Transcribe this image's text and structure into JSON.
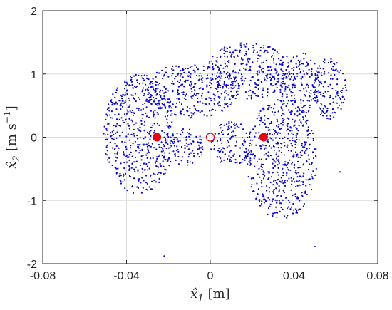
{
  "chart_data": {
    "type": "scatter",
    "xlabel": {
      "var": "x̂",
      "sub": "1",
      "unit": "[m]"
    },
    "ylabel": {
      "var": "x̂",
      "sub": "2",
      "unit": "[m s",
      "exp": "−1",
      "unit_end": "]"
    },
    "xlim": [
      -0.08,
      0.08
    ],
    "ylim": [
      -2,
      2
    ],
    "xticks": [
      {
        "value": -0.08,
        "label": "-0.08"
      },
      {
        "value": -0.04,
        "label": "-0.04"
      },
      {
        "value": 0,
        "label": "0"
      },
      {
        "value": 0.04,
        "label": "0.04"
      },
      {
        "value": 0.08,
        "label": "0.08"
      }
    ],
    "yticks": [
      {
        "value": -2,
        "label": "-2"
      },
      {
        "value": -1,
        "label": "-1"
      },
      {
        "value": 0,
        "label": "0"
      },
      {
        "value": 1,
        "label": "1"
      },
      {
        "value": 2,
        "label": "2"
      }
    ],
    "grid": true,
    "point_cloud": {
      "color": "#0a0ac8",
      "estimated_count": 2200,
      "regions": [
        {
          "cx": -0.034,
          "cy": 0.05,
          "rx": 0.017,
          "ry": 0.95
        },
        {
          "cx": -0.008,
          "cy": 0.75,
          "rx": 0.022,
          "ry": 0.45
        },
        {
          "cx": 0.018,
          "cy": 1.05,
          "rx": 0.02,
          "ry": 0.45
        },
        {
          "cx": 0.034,
          "cy": -0.35,
          "rx": 0.017,
          "ry": 0.95
        },
        {
          "cx": 0.042,
          "cy": 0.85,
          "rx": 0.011,
          "ry": 0.5
        },
        {
          "cx": 0.057,
          "cy": 0.75,
          "rx": 0.008,
          "ry": 0.5
        },
        {
          "cx": 0.01,
          "cy": -0.1,
          "rx": 0.01,
          "ry": 0.35
        },
        {
          "cx": -0.012,
          "cy": -0.15,
          "rx": 0.009,
          "ry": 0.3
        }
      ],
      "outliers": [
        {
          "x": -0.022,
          "y": -1.88
        },
        {
          "x": 0.05,
          "y": -1.73
        },
        {
          "x": 0.062,
          "y": -0.55
        }
      ]
    },
    "equilibria": [
      {
        "x": -0.0255,
        "y": 0.0,
        "style": "filled",
        "color": "#e30613"
      },
      {
        "x": 0.0,
        "y": 0.0,
        "style": "hollow",
        "color": "#e30613"
      },
      {
        "x": 0.0255,
        "y": 0.0,
        "style": "filled",
        "color": "#e30613"
      }
    ]
  }
}
